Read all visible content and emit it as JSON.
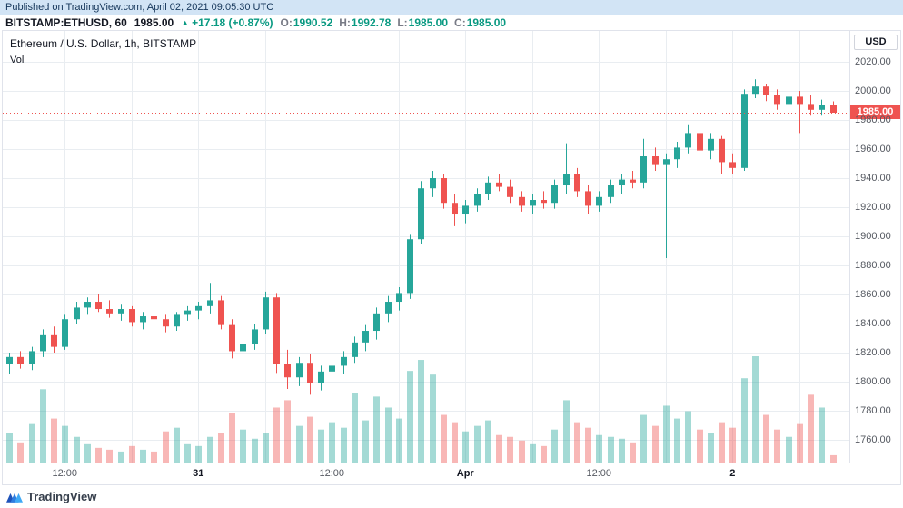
{
  "published_bar": {
    "text": "Published on TradingView.com, April 02, 2021 09:05:30 UTC"
  },
  "symbol_bar": {
    "symbol": "BITSTAMP:ETHUSD, 60",
    "last_price": "1985.00",
    "direction_arrow": "▲",
    "change": "+17.18 (+0.87%)",
    "ohlc": {
      "o_label": "O:",
      "o": "1990.52",
      "h_label": "H:",
      "h": "1992.78",
      "l_label": "L:",
      "l": "1985.00",
      "c_label": "C:",
      "c": "1985.00"
    }
  },
  "legend": {
    "title": "Ethereum / U.S. Dollar, 1h, BITSTAMP",
    "indicator": "Vol"
  },
  "currency_button": "USD",
  "footer": {
    "brand": "TradingView"
  },
  "colors": {
    "up": "#26a69a",
    "down": "#ef5350",
    "vol_opacity": 0.42,
    "grid": "#e9edf1",
    "green_text": "#089981",
    "gray_text": "#787b86",
    "dark_text": "#131722",
    "axis_text": "#555961",
    "published_bg": "#d2e4f5",
    "badge_bg": "#ef5350",
    "logo_blue_dark": "#1e53ba",
    "logo_blue_light": "#3fa9f5"
  },
  "chart_data": {
    "type": "candlestick_with_volume",
    "title": "Ethereum / U.S. Dollar, 1h, BITSTAMP",
    "symbol": "BITSTAMP:ETHUSD",
    "interval": "1h",
    "grid": true,
    "ylim": [
      1744.4,
      2041.25
    ],
    "y_ticks": [
      "2020.00",
      "2000.00",
      "1980.00",
      "1960.00",
      "1940.00",
      "1920.00",
      "1900.00",
      "1880.00",
      "1860.00",
      "1840.00",
      "1820.00",
      "1800.00",
      "1780.00",
      "1760.00"
    ],
    "last_price": {
      "value": 1985.0,
      "label": "1985.00"
    },
    "x_ticks": [
      {
        "index": 5,
        "label": "12:00",
        "is_date": false
      },
      {
        "index": 17,
        "label": "31",
        "is_date": true
      },
      {
        "index": 29,
        "label": "12:00",
        "is_date": false
      },
      {
        "index": 41,
        "label": "Apr",
        "is_date": true
      },
      {
        "index": 53,
        "label": "12:00",
        "is_date": false
      },
      {
        "index": 65,
        "label": "2",
        "is_date": true
      }
    ],
    "candles_format": [
      "open",
      "high",
      "low",
      "close",
      "volume"
    ],
    "candles": [
      [
        1812,
        1820,
        1805,
        1817,
        1600
      ],
      [
        1817,
        1821,
        1809,
        1812,
        1100
      ],
      [
        1812,
        1824,
        1808,
        1821,
        2100
      ],
      [
        1821,
        1836,
        1817,
        1832,
        4000
      ],
      [
        1832,
        1838,
        1820,
        1824,
        2400
      ],
      [
        1824,
        1846,
        1822,
        1843,
        2000
      ],
      [
        1843,
        1855,
        1840,
        1851,
        1400
      ],
      [
        1851,
        1858,
        1846,
        1855,
        1000
      ],
      [
        1855,
        1860,
        1848,
        1850,
        800
      ],
      [
        1850,
        1856,
        1844,
        1847,
        700
      ],
      [
        1847,
        1853,
        1842,
        1850,
        600
      ],
      [
        1850,
        1852,
        1838,
        1841,
        900
      ],
      [
        1841,
        1848,
        1836,
        1845,
        700
      ],
      [
        1845,
        1851,
        1840,
        1843,
        600
      ],
      [
        1843,
        1846,
        1834,
        1838,
        1700
      ],
      [
        1838,
        1848,
        1835,
        1846,
        1900
      ],
      [
        1846,
        1852,
        1842,
        1849,
        1000
      ],
      [
        1849,
        1855,
        1843,
        1852,
        900
      ],
      [
        1852,
        1868,
        1847,
        1856,
        1400
      ],
      [
        1856,
        1859,
        1836,
        1839,
        1600
      ],
      [
        1839,
        1843,
        1816,
        1821,
        2700
      ],
      [
        1821,
        1830,
        1812,
        1826,
        1800
      ],
      [
        1826,
        1840,
        1822,
        1836,
        1300
      ],
      [
        1836,
        1862,
        1833,
        1858,
        1600
      ],
      [
        1858,
        1861,
        1806,
        1812,
        3000
      ],
      [
        1812,
        1822,
        1795,
        1803,
        3400
      ],
      [
        1803,
        1817,
        1797,
        1813,
        2000
      ],
      [
        1813,
        1819,
        1791,
        1799,
        2500
      ],
      [
        1799,
        1811,
        1794,
        1807,
        1800
      ],
      [
        1807,
        1815,
        1801,
        1811,
        2200
      ],
      [
        1811,
        1821,
        1805,
        1817,
        1900
      ],
      [
        1817,
        1831,
        1813,
        1827,
        3800
      ],
      [
        1827,
        1839,
        1821,
        1835,
        2300
      ],
      [
        1835,
        1851,
        1829,
        1847,
        3600
      ],
      [
        1847,
        1859,
        1841,
        1855,
        3000
      ],
      [
        1855,
        1865,
        1849,
        1861,
        2400
      ],
      [
        1861,
        1901,
        1857,
        1898,
        5000
      ],
      [
        1898,
        1938,
        1895,
        1933,
        5600
      ],
      [
        1933,
        1945,
        1927,
        1940,
        4800
      ],
      [
        1940,
        1943,
        1919,
        1923,
        2600
      ],
      [
        1923,
        1929,
        1907,
        1915,
        2200
      ],
      [
        1915,
        1925,
        1909,
        1921,
        1700
      ],
      [
        1921,
        1933,
        1917,
        1929,
        2000
      ],
      [
        1929,
        1941,
        1925,
        1937,
        2300
      ],
      [
        1937,
        1943,
        1931,
        1934,
        1500
      ],
      [
        1934,
        1939,
        1923,
        1927,
        1400
      ],
      [
        1927,
        1931,
        1917,
        1921,
        1200
      ],
      [
        1921,
        1929,
        1915,
        1925,
        1000
      ],
      [
        1925,
        1931,
        1919,
        1923,
        900
      ],
      [
        1923,
        1939,
        1919,
        1935,
        1800
      ],
      [
        1935,
        1964,
        1929,
        1943,
        3400
      ],
      [
        1943,
        1947,
        1927,
        1931,
        2200
      ],
      [
        1931,
        1935,
        1915,
        1921,
        1900
      ],
      [
        1921,
        1931,
        1917,
        1927,
        1500
      ],
      [
        1927,
        1939,
        1923,
        1935,
        1400
      ],
      [
        1935,
        1943,
        1929,
        1939,
        1300
      ],
      [
        1939,
        1945,
        1933,
        1937,
        1100
      ],
      [
        1937,
        1967,
        1933,
        1955,
        2600
      ],
      [
        1955,
        1961,
        1945,
        1949,
        2000
      ],
      [
        1949,
        1957,
        1885,
        1953,
        3100
      ],
      [
        1953,
        1965,
        1947,
        1961,
        2400
      ],
      [
        1961,
        1977,
        1957,
        1971,
        2800
      ],
      [
        1971,
        1975,
        1955,
        1959,
        1800
      ],
      [
        1959,
        1971,
        1953,
        1967,
        1600
      ],
      [
        1967,
        1969,
        1943,
        1951,
        2200
      ],
      [
        1951,
        1957,
        1943,
        1947,
        1900
      ],
      [
        1947,
        2001,
        1945,
        1998,
        4600
      ],
      [
        1998,
        2008,
        1995,
        2003,
        5800
      ],
      [
        2003,
        2005,
        1993,
        1997,
        2600
      ],
      [
        1997,
        2001,
        1987,
        1991,
        1800
      ],
      [
        1991,
        1999,
        1989,
        1996,
        1400
      ],
      [
        1996,
        2000,
        1971,
        1991,
        2100
      ],
      [
        1991,
        1997,
        1983,
        1987,
        3700
      ],
      [
        1987,
        1994,
        1983,
        1990.52,
        3000
      ],
      [
        1990.52,
        1992.78,
        1985,
        1985,
        400
      ]
    ]
  }
}
